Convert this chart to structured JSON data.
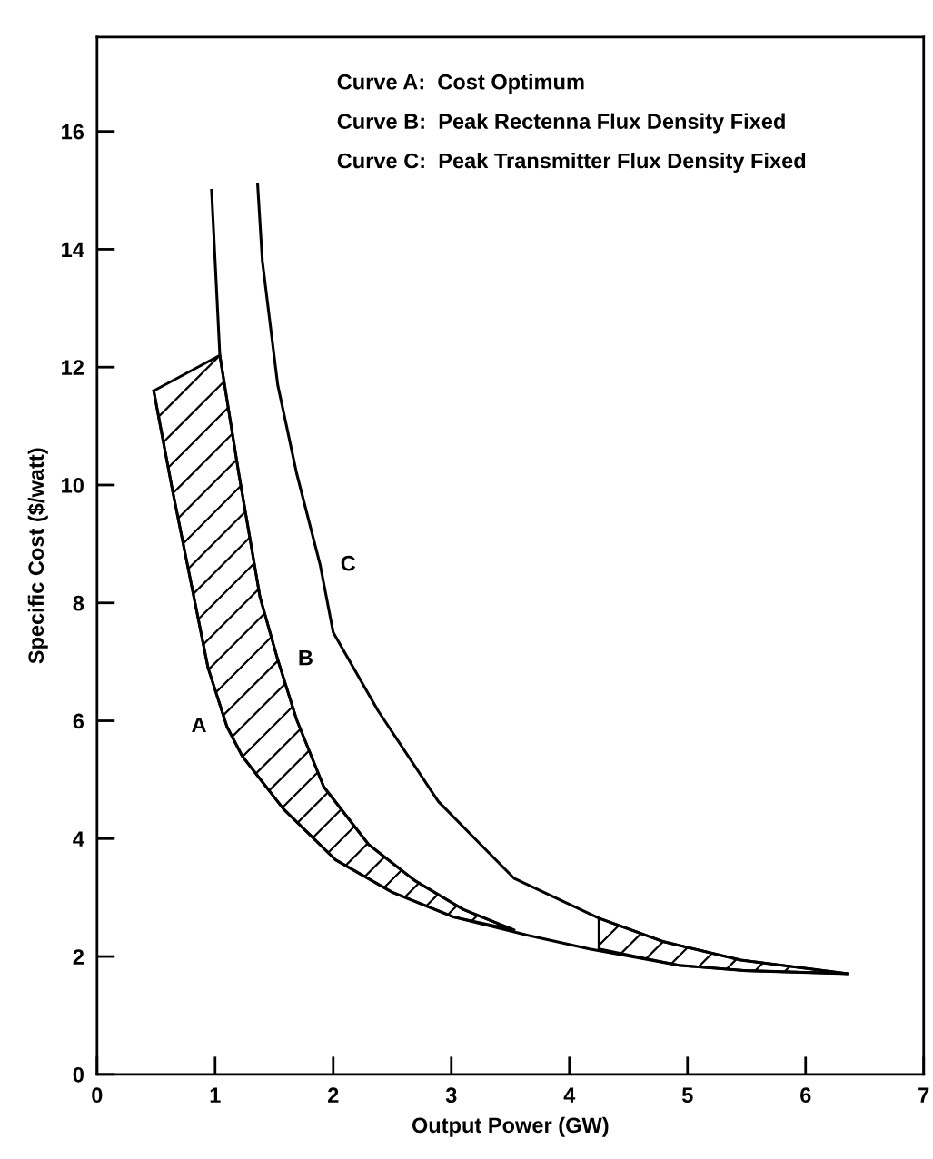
{
  "chart_data": {
    "type": "line",
    "xlabel": "Output Power (GW)",
    "ylabel": "Specific Cost ($/watt)",
    "xlim": [
      0,
      7
    ],
    "ylim": [
      0,
      17.6
    ],
    "xticks": [
      0,
      1,
      2,
      3,
      4,
      5,
      6,
      7
    ],
    "yticks": [
      0,
      2,
      4,
      6,
      8,
      10,
      12,
      14,
      16
    ],
    "grid": false,
    "marker": "none",
    "line_style": "solid",
    "series": [
      {
        "name": "A",
        "color": "#000000",
        "x": [
          0.48,
          0.64,
          0.79,
          0.94,
          1.1,
          1.23,
          1.58,
          2.02,
          2.5,
          3.02,
          3.65,
          4.17,
          4.93,
          5.5,
          6.35
        ],
        "values": [
          11.6,
          9.9,
          8.4,
          6.9,
          5.9,
          5.4,
          4.5,
          3.64,
          3.09,
          2.67,
          2.36,
          2.13,
          1.85,
          1.76,
          1.71
        ]
      },
      {
        "name": "B",
        "color": "#000000",
        "x": [
          0.97,
          1.04,
          1.2,
          1.38,
          1.53,
          1.69,
          1.92,
          2.3,
          2.69,
          3.1,
          3.53
        ],
        "values": [
          15.0,
          12.2,
          10.2,
          8.1,
          7.04,
          6.02,
          4.88,
          3.9,
          3.29,
          2.8,
          2.45
        ]
      },
      {
        "name": "C",
        "color": "#000000",
        "x": [
          1.36,
          1.4,
          1.53,
          1.69,
          1.89,
          2.0,
          2.38,
          2.89,
          3.53,
          4.25,
          4.8,
          5.45,
          6.35
        ],
        "values": [
          15.1,
          13.8,
          11.7,
          10.2,
          8.64,
          7.5,
          6.17,
          4.63,
          3.33,
          2.65,
          2.25,
          1.94,
          1.71
        ]
      }
    ],
    "annotations": [
      "Curve A:  Cost Optimum",
      "Curve B:  Peak Rectenna Flux Density Fixed",
      "Curve C:  Peak Transmitter Flux Density Fixed"
    ]
  }
}
